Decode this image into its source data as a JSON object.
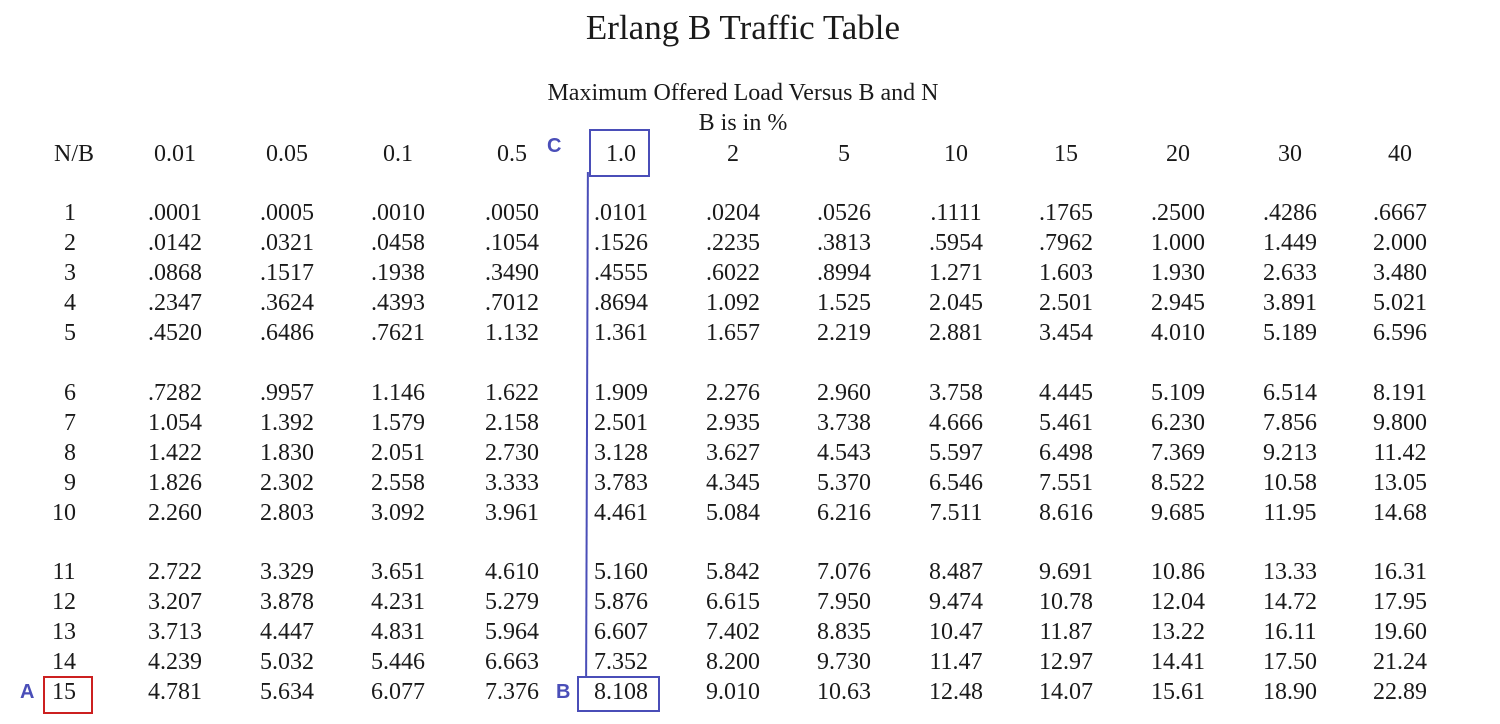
{
  "title": "Erlang B Traffic Table",
  "subtitle": "Maximum Offered Load Versus B and N",
  "unit_note": "B is in %",
  "corner_label": "N/B",
  "columns": [
    "0.01",
    "0.05",
    "0.1",
    "0.5",
    "1.0",
    "2",
    "5",
    "10",
    "15",
    "20",
    "30",
    "40"
  ],
  "rows": [
    {
      "n": "1",
      "values": [
        ".0001",
        ".0005",
        ".0010",
        ".0050",
        ".0101",
        ".0204",
        ".0526",
        ".1111",
        ".1765",
        ".2500",
        ".4286",
        ".6667"
      ]
    },
    {
      "n": "2",
      "values": [
        ".0142",
        ".0321",
        ".0458",
        ".1054",
        ".1526",
        ".2235",
        ".3813",
        ".5954",
        ".7962",
        "1.000",
        "1.449",
        "2.000"
      ]
    },
    {
      "n": "3",
      "values": [
        ".0868",
        ".1517",
        ".1938",
        ".3490",
        ".4555",
        ".6022",
        ".8994",
        "1.271",
        "1.603",
        "1.930",
        "2.633",
        "3.480"
      ]
    },
    {
      "n": "4",
      "values": [
        ".2347",
        ".3624",
        ".4393",
        ".7012",
        ".8694",
        "1.092",
        "1.525",
        "2.045",
        "2.501",
        "2.945",
        "3.891",
        "5.021"
      ]
    },
    {
      "n": "5",
      "values": [
        ".4520",
        ".6486",
        ".7621",
        "1.132",
        "1.361",
        "1.657",
        "2.219",
        "2.881",
        "3.454",
        "4.010",
        "5.189",
        "6.596"
      ]
    },
    {
      "n": "6",
      "values": [
        ".7282",
        ".9957",
        "1.146",
        "1.622",
        "1.909",
        "2.276",
        "2.960",
        "3.758",
        "4.445",
        "5.109",
        "6.514",
        "8.191"
      ]
    },
    {
      "n": "7",
      "values": [
        "1.054",
        "1.392",
        "1.579",
        "2.158",
        "2.501",
        "2.935",
        "3.738",
        "4.666",
        "5.461",
        "6.230",
        "7.856",
        "9.800"
      ]
    },
    {
      "n": "8",
      "values": [
        "1.422",
        "1.830",
        "2.051",
        "2.730",
        "3.128",
        "3.627",
        "4.543",
        "5.597",
        "6.498",
        "7.369",
        "9.213",
        "11.42"
      ]
    },
    {
      "n": "9",
      "values": [
        "1.826",
        "2.302",
        "2.558",
        "3.333",
        "3.783",
        "4.345",
        "5.370",
        "6.546",
        "7.551",
        "8.522",
        "10.58",
        "13.05"
      ]
    },
    {
      "n": "10",
      "values": [
        "2.260",
        "2.803",
        "3.092",
        "3.961",
        "4.461",
        "5.084",
        "6.216",
        "7.511",
        "8.616",
        "9.685",
        "11.95",
        "14.68"
      ]
    },
    {
      "n": "11",
      "values": [
        "2.722",
        "3.329",
        "3.651",
        "4.610",
        "5.160",
        "5.842",
        "7.076",
        "8.487",
        "9.691",
        "10.86",
        "13.33",
        "16.31"
      ]
    },
    {
      "n": "12",
      "values": [
        "3.207",
        "3.878",
        "4.231",
        "5.279",
        "5.876",
        "6.615",
        "7.950",
        "9.474",
        "10.78",
        "12.04",
        "14.72",
        "17.95"
      ]
    },
    {
      "n": "13",
      "values": [
        "3.713",
        "4.447",
        "4.831",
        "5.964",
        "6.607",
        "7.402",
        "8.835",
        "10.47",
        "11.87",
        "13.22",
        "16.11",
        "19.60"
      ]
    },
    {
      "n": "14",
      "values": [
        "4.239",
        "5.032",
        "5.446",
        "6.663",
        "7.352",
        "8.200",
        "9.730",
        "11.47",
        "12.97",
        "14.41",
        "17.50",
        "21.24"
      ]
    },
    {
      "n": "15",
      "values": [
        "4.781",
        "5.634",
        "6.077",
        "7.376",
        "8.108",
        "9.010",
        "10.63",
        "12.48",
        "14.07",
        "15.61",
        "18.90",
        "22.89"
      ]
    }
  ],
  "annotations": {
    "a_label": "A",
    "b_label": "B",
    "c_label": "C",
    "a_color": "#cc2020",
    "bc_color": "#4a4eb8"
  }
}
